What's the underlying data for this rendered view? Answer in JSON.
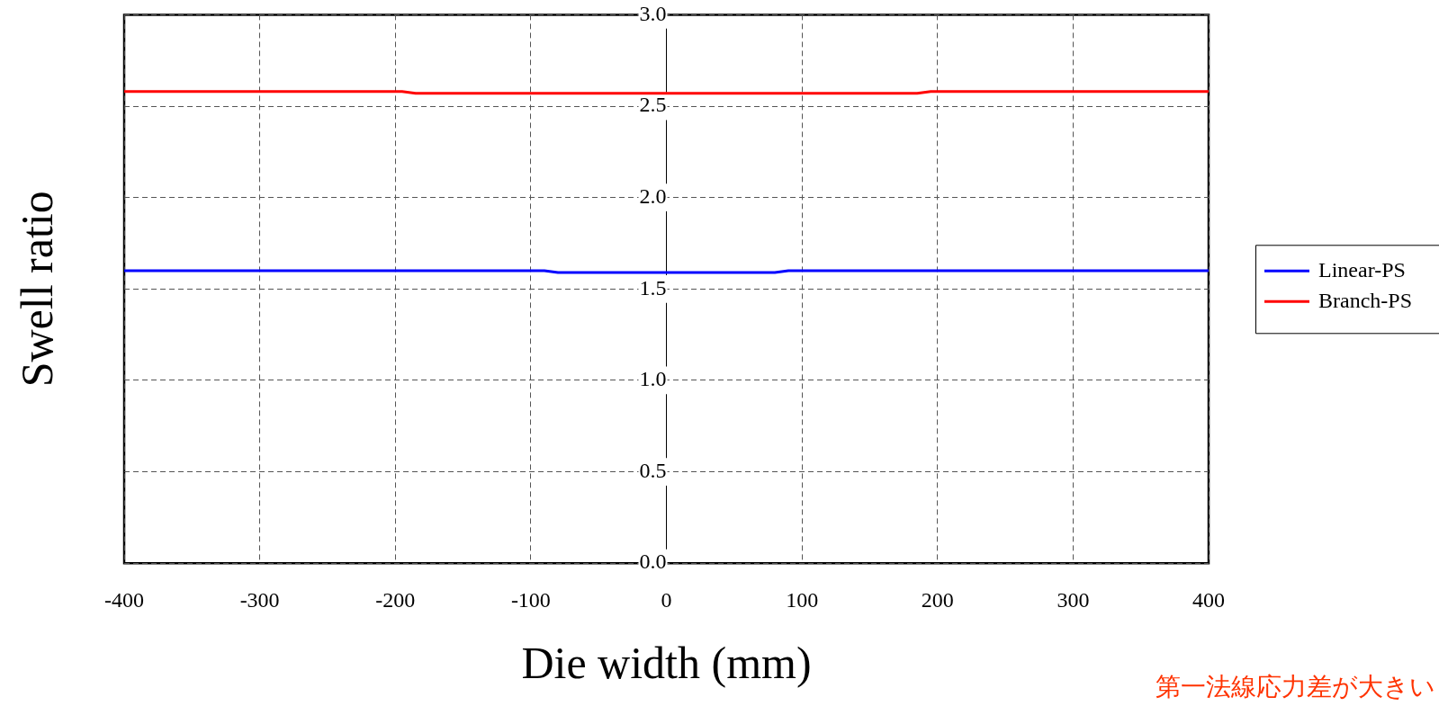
{
  "chart_data": {
    "type": "line",
    "xlabel": "Die width (mm)",
    "ylabel": "Swell ratio",
    "xlim": [
      -400,
      400
    ],
    "xticks": [
      -400,
      -300,
      -200,
      -100,
      0,
      100,
      200,
      300,
      400
    ],
    "ylim": [
      0,
      3
    ],
    "yticks": [
      {
        "value": 0,
        "label": "0.0"
      },
      {
        "value": 0.5,
        "label": "0.5"
      },
      {
        "value": 1,
        "label": "1.0"
      },
      {
        "value": 1.5,
        "label": "1.5"
      },
      {
        "value": 2,
        "label": "2.0"
      },
      {
        "value": 2.5,
        "label": "2.5"
      },
      {
        "value": 3,
        "label": "3.0"
      }
    ],
    "grid": true,
    "legend": "right",
    "marker": "none",
    "line_style": "solid",
    "annotations": [
      "第一法線応力差が大きい"
    ],
    "series": [
      {
        "name": "Linear-PS",
        "color": "#0000ff",
        "x": [
          -400,
          -90,
          -80,
          80,
          90,
          400
        ],
        "values": [
          1.6,
          1.6,
          1.59,
          1.59,
          1.6,
          1.6
        ]
      },
      {
        "name": "Branch-PS",
        "color": "#ff0000",
        "x": [
          -400,
          -195,
          -185,
          185,
          195,
          400
        ],
        "values": [
          2.58,
          2.58,
          2.57,
          2.57,
          2.58,
          2.58
        ]
      }
    ]
  }
}
